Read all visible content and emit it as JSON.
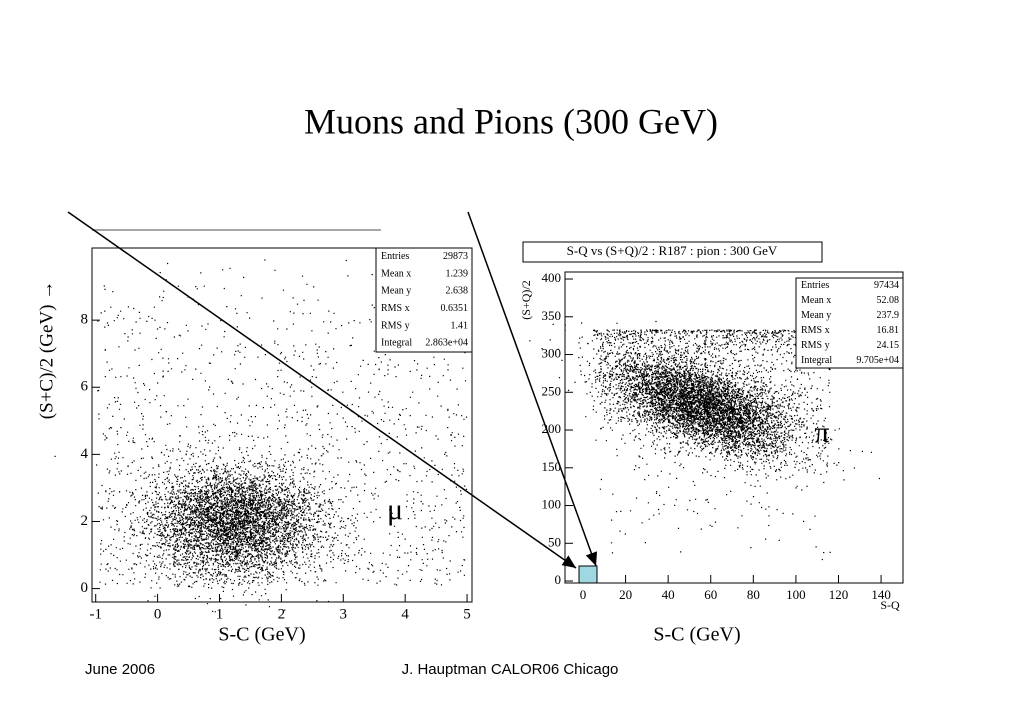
{
  "title": "Muons and Pions  (300 GeV)",
  "greek_left": "μ",
  "greek_right": "π",
  "footer_left": "June 2006",
  "footer_center": "J. Hauptman CALOR06 Chicago",
  "chart_data": [
    {
      "type": "scatter",
      "ylabel": "(S+C)/2  (GeV) →",
      "xlabel": "S-C (GeV)",
      "xlim": [
        -1.06,
        5.08
      ],
      "ylim": [
        -0.4,
        10.15
      ],
      "xticks": [
        -1,
        0,
        1,
        2,
        3,
        4,
        5
      ],
      "yticks": [
        0,
        2,
        4,
        6,
        8
      ],
      "stats": {
        "labels": [
          "Entries",
          "Mean x",
          "Mean y",
          "RMS x",
          "RMS y",
          "Integral"
        ],
        "values": [
          29873,
          1.239,
          2.638,
          0.6351,
          1.41,
          "2.863e+04"
        ]
      }
    },
    {
      "type": "scatter",
      "plot_title": "S-Q vs (S+Q)/2  : R187 : pion : 300 GeV",
      "ylabel": "(S+Q)/2",
      "xlabel": "S-Q",
      "caption": "S-C (GeV)",
      "xlim": [
        -8.45,
        150.3
      ],
      "ylim": [
        -2.6,
        409.3
      ],
      "xticks": [
        0,
        20,
        40,
        60,
        80,
        100,
        120,
        140
      ],
      "yticks": [
        0,
        50,
        100,
        150,
        200,
        250,
        300,
        350,
        400
      ],
      "stats": {
        "labels": [
          "Entries",
          "Mean x",
          "Mean y",
          "RMS x",
          "RMS y",
          "Integral"
        ],
        "values": [
          97434,
          52.08,
          237.9,
          16.81,
          24.15,
          "9.705e+04"
        ]
      }
    }
  ]
}
